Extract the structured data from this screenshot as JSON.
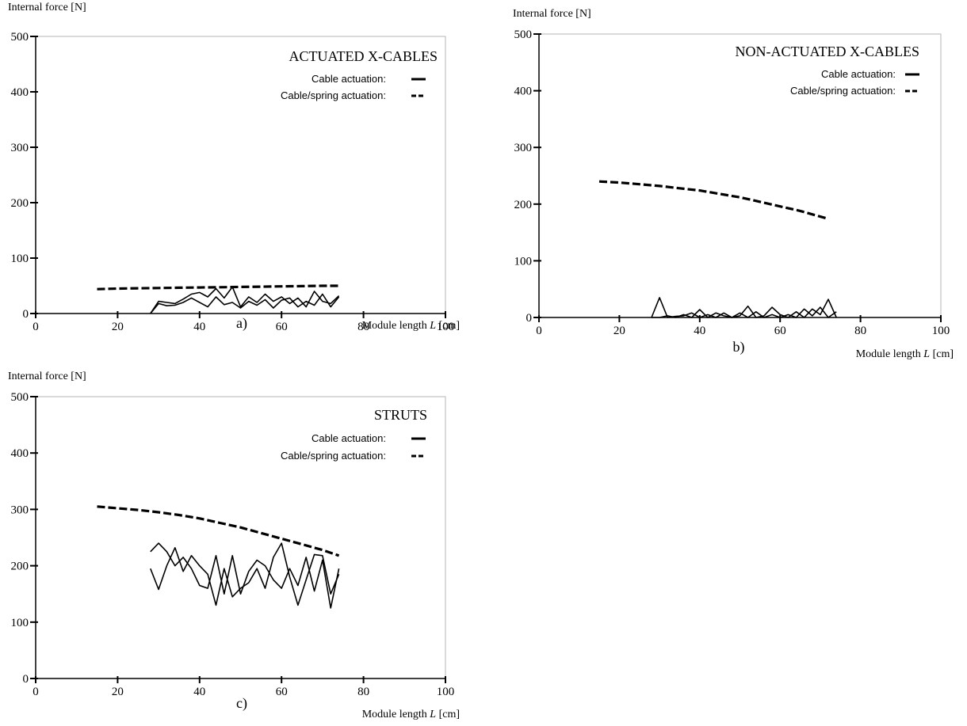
{
  "legend": {
    "cable": "Cable actuation:",
    "spring": "Cable/spring actuation:"
  },
  "axes": {
    "ylabel": "Internal force [N]",
    "xlabel_prefix": "Module length ",
    "xlabel_var": "L",
    "xlabel_suffix": " [cm]",
    "xticks": [
      "0",
      "20",
      "40",
      "60",
      "80",
      "100"
    ],
    "yticks": [
      "0",
      "100",
      "200",
      "300",
      "400",
      "500"
    ]
  },
  "chart_data": [
    {
      "id": "a",
      "type": "line",
      "title": "ACTUATED X-CABLES",
      "caption": "a)",
      "xlabel": "Module length L [cm]",
      "ylabel": "Internal force [N]",
      "xlim": [
        0,
        100
      ],
      "ylim": [
        0,
        500
      ],
      "grid": false,
      "legend_position": "top-right",
      "series": [
        {
          "name": "Cable/spring actuation",
          "style": "dashed",
          "x": [
            15,
            20,
            25,
            30,
            35,
            40,
            45,
            50,
            55,
            60,
            65,
            70,
            74
          ],
          "y": [
            44,
            45,
            45.5,
            46,
            46.5,
            47,
            47.5,
            48,
            48.5,
            49,
            49.5,
            50,
            50
          ]
        },
        {
          "name": "Cable actuation",
          "style": "solid",
          "x": [
            28,
            30,
            32,
            34,
            36,
            38,
            40,
            42,
            44,
            46,
            48,
            50,
            52,
            54,
            56,
            58,
            60,
            62,
            64,
            66,
            68,
            70,
            72,
            74
          ],
          "y": [
            0,
            22,
            20,
            18,
            26,
            35,
            38,
            30,
            45,
            28,
            48,
            12,
            30,
            20,
            35,
            22,
            30,
            18,
            28,
            12,
            40,
            22,
            18,
            32
          ]
        },
        {
          "name": "Cable actuation",
          "style": "solid",
          "x": [
            28,
            30,
            32,
            34,
            36,
            38,
            40,
            42,
            44,
            46,
            48,
            50,
            52,
            54,
            56,
            58,
            60,
            62,
            64,
            66,
            68,
            70,
            72,
            74
          ],
          "y": [
            0,
            18,
            14,
            15,
            20,
            28,
            20,
            12,
            30,
            16,
            20,
            10,
            22,
            15,
            25,
            10,
            24,
            28,
            12,
            22,
            15,
            35,
            12,
            30
          ]
        }
      ]
    },
    {
      "id": "b",
      "type": "line",
      "title": "NON-ACTUATED X-CABLES",
      "caption": "b)",
      "xlabel": "Module length L [cm]",
      "ylabel": "Internal force [N]",
      "xlim": [
        0,
        100
      ],
      "ylim": [
        0,
        500
      ],
      "grid": false,
      "legend_position": "top-right",
      "series": [
        {
          "name": "Cable/spring actuation",
          "style": "dashed",
          "x": [
            15,
            20,
            25,
            30,
            35,
            40,
            45,
            50,
            55,
            60,
            65,
            70,
            72
          ],
          "y": [
            240,
            238,
            235,
            232,
            228,
            224,
            218,
            212,
            204,
            196,
            188,
            178,
            174
          ]
        },
        {
          "name": "Cable actuation",
          "style": "solid",
          "x": [
            28,
            30,
            32,
            34,
            36,
            38,
            40,
            42,
            44,
            46,
            48,
            50,
            52,
            54,
            56,
            58,
            60,
            62,
            64,
            66,
            68,
            70,
            72,
            74
          ],
          "y": [
            0,
            35,
            0,
            2,
            3,
            8,
            0,
            5,
            0,
            8,
            0,
            3,
            20,
            0,
            3,
            18,
            5,
            0,
            10,
            0,
            15,
            5,
            32,
            0
          ]
        },
        {
          "name": "Cable actuation",
          "style": "solid",
          "x": [
            28,
            30,
            32,
            34,
            36,
            38,
            40,
            42,
            44,
            46,
            48,
            50,
            52,
            54,
            56,
            58,
            60,
            62,
            64,
            66,
            68,
            70,
            72,
            74
          ],
          "y": [
            0,
            0,
            3,
            0,
            5,
            0,
            14,
            0,
            8,
            3,
            0,
            8,
            0,
            10,
            0,
            5,
            0,
            5,
            0,
            15,
            3,
            18,
            0,
            10
          ]
        }
      ]
    },
    {
      "id": "c",
      "type": "line",
      "title": "STRUTS",
      "caption": "c)",
      "xlabel": "Module length L [cm]",
      "ylabel": "Internal force [N]",
      "xlim": [
        0,
        100
      ],
      "ylim": [
        0,
        500
      ],
      "grid": false,
      "legend_position": "top-right",
      "series": [
        {
          "name": "Cable/spring actuation",
          "style": "dashed",
          "x": [
            15,
            20,
            25,
            30,
            35,
            40,
            45,
            50,
            55,
            60,
            65,
            70,
            74
          ],
          "y": [
            305,
            302,
            299,
            295,
            290,
            284,
            276,
            268,
            258,
            248,
            238,
            228,
            218
          ]
        },
        {
          "name": "Cable actuation",
          "style": "solid",
          "x": [
            28,
            30,
            32,
            34,
            36,
            38,
            40,
            42,
            44,
            46,
            48,
            50,
            52,
            54,
            56,
            58,
            60,
            62,
            64,
            66,
            68,
            70,
            72,
            74
          ],
          "y": [
            225,
            240,
            225,
            200,
            215,
            195,
            165,
            160,
            218,
            150,
            218,
            150,
            190,
            210,
            200,
            175,
            160,
            195,
            165,
            215,
            155,
            210,
            125,
            195
          ]
        },
        {
          "name": "Cable actuation",
          "style": "solid",
          "x": [
            28,
            30,
            32,
            34,
            36,
            38,
            40,
            42,
            44,
            46,
            48,
            50,
            52,
            54,
            56,
            58,
            60,
            62,
            64,
            66,
            68,
            70,
            72,
            74
          ],
          "y": [
            195,
            158,
            200,
            232,
            190,
            218,
            200,
            185,
            130,
            195,
            145,
            160,
            170,
            195,
            160,
            215,
            240,
            180,
            130,
            175,
            220,
            218,
            150,
            185
          ]
        }
      ]
    }
  ]
}
